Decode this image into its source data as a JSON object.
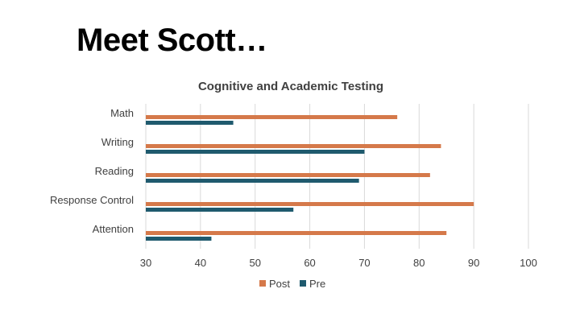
{
  "slide": {
    "title": "Meet Scott…"
  },
  "colors": {
    "post": "#D5794A",
    "pre": "#1F5A6E",
    "grid": "#D9D9D9",
    "text": "#404040"
  },
  "chart_data": {
    "type": "bar",
    "orientation": "horizontal",
    "title": "Cognitive and Academic Testing",
    "categories": [
      "Math",
      "Writing",
      "Reading",
      "Response Control",
      "Attention"
    ],
    "series": [
      {
        "name": "Post",
        "values": [
          76,
          84,
          82,
          90,
          85
        ]
      },
      {
        "name": "Pre",
        "values": [
          46,
          70,
          69,
          57,
          42
        ]
      }
    ],
    "xlim": [
      30,
      100
    ],
    "xticks": [
      30,
      40,
      50,
      60,
      70,
      80,
      90,
      100
    ],
    "grid": true,
    "legend_position": "bottom"
  }
}
